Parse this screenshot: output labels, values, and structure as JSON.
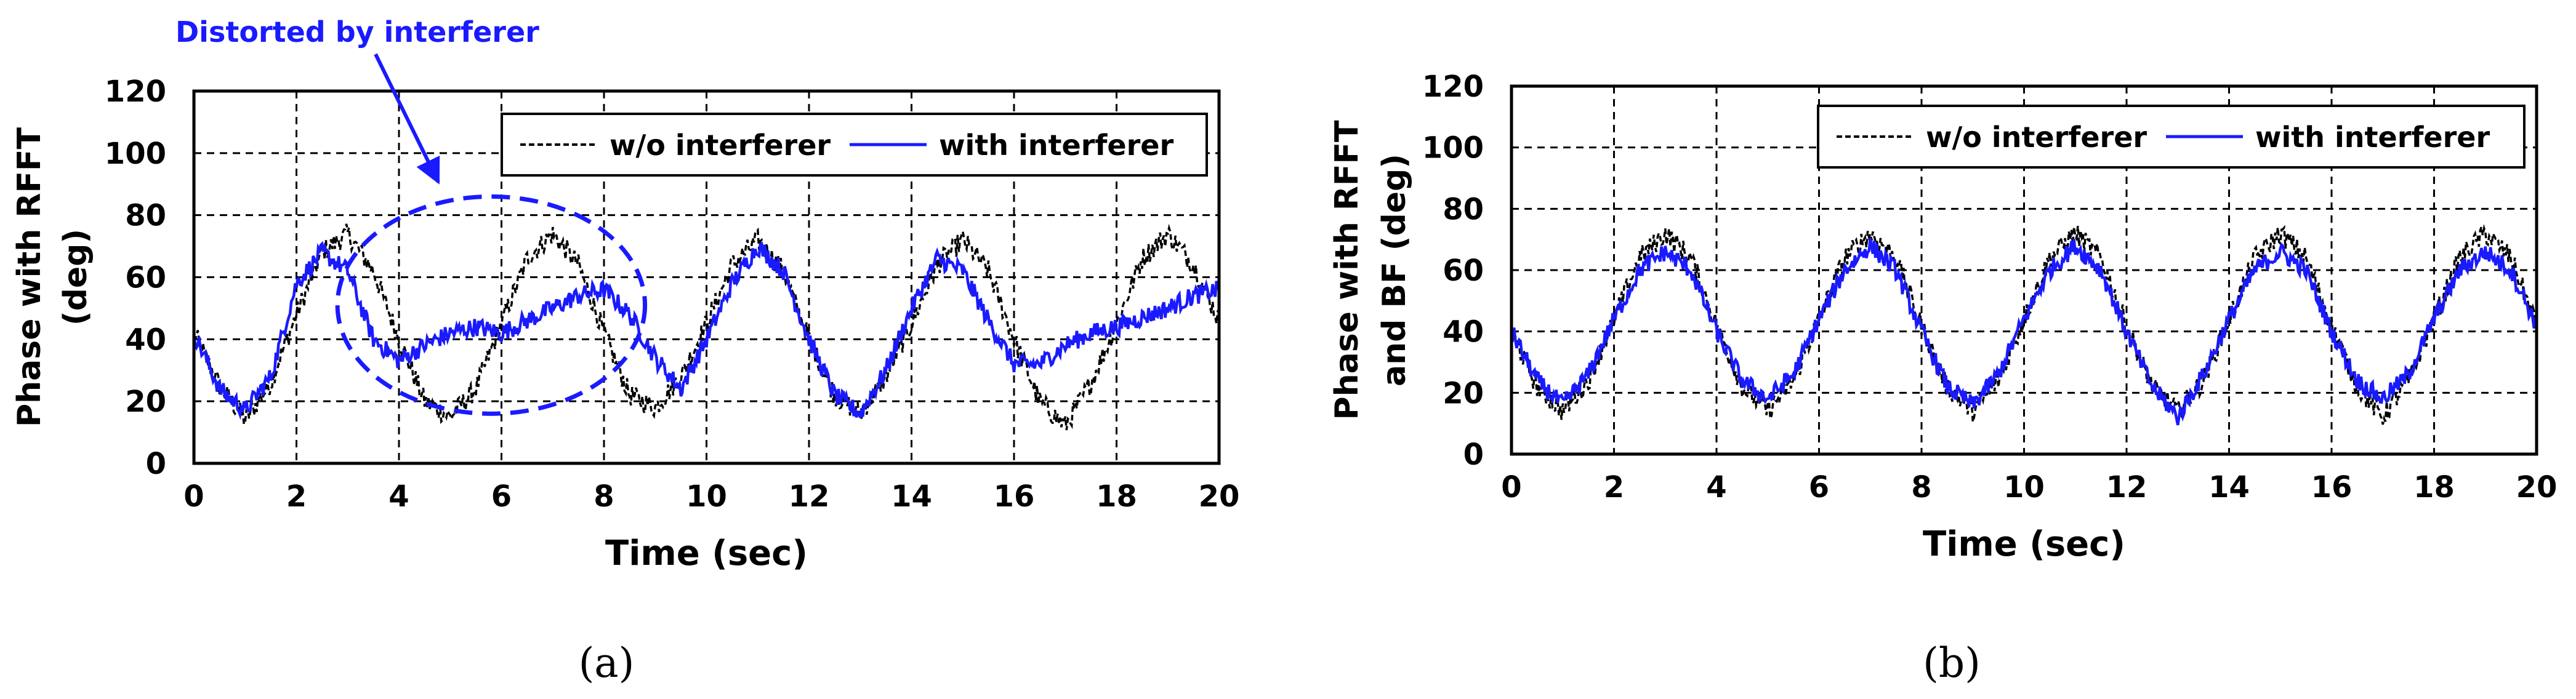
{
  "chart_data": [
    {
      "type": "line",
      "panel_label": "(a)",
      "ylabel": "Phase with RFFT (deg)",
      "ylabel_lines": [
        "Phase with RFFT",
        "(deg)"
      ],
      "xlabel": "Time (sec)",
      "xlim": [
        0,
        20
      ],
      "ylim": [
        0,
        120
      ],
      "xticks": [
        0,
        2,
        4,
        6,
        8,
        10,
        12,
        14,
        16,
        18,
        20
      ],
      "yticks": [
        0,
        20,
        40,
        60,
        80,
        100,
        120
      ],
      "grid": true,
      "legend_position": "top-right",
      "annotation": "Distorted by interferer",
      "ellipse_center": [
        5.8,
        51
      ],
      "ellipse_radii": [
        3.0,
        35
      ],
      "series": [
        {
          "name": "w/o interferer",
          "style": "dashed",
          "color": "#000000",
          "period": 4.0,
          "x": [
            0,
            0.5,
            1.0,
            1.5,
            2.0,
            2.5,
            3.0,
            3.5,
            4.0,
            4.5,
            5.0,
            5.5,
            6.0,
            6.5,
            7.0,
            7.5,
            8.0,
            8.5,
            9.0,
            9.5,
            10.0,
            10.5,
            11.0,
            11.5,
            12.0,
            12.5,
            13.0,
            13.5,
            14.0,
            14.5,
            15.0,
            15.5,
            16.0,
            16.5,
            17.0,
            17.5,
            18.0,
            18.5,
            19.0,
            19.5,
            20.0
          ],
          "y": [
            42,
            25,
            14,
            26,
            48,
            68,
            74,
            62,
            40,
            20,
            15,
            24,
            45,
            66,
            74,
            64,
            42,
            22,
            18,
            28,
            45,
            64,
            72,
            62,
            40,
            22,
            16,
            28,
            45,
            64,
            72,
            62,
            40,
            20,
            12,
            26,
            45,
            66,
            74,
            64,
            46
          ]
        },
        {
          "name": "with interferer",
          "style": "solid",
          "color": "#1a1aff",
          "x": [
            0,
            0.5,
            1.0,
            1.5,
            2.0,
            2.5,
            3.0,
            3.5,
            4.0,
            4.5,
            5.0,
            5.5,
            6.0,
            6.5,
            7.0,
            7.5,
            8.0,
            8.5,
            9.0,
            9.5,
            10.0,
            10.5,
            11.0,
            11.5,
            12.0,
            12.5,
            13.0,
            13.5,
            14.0,
            14.5,
            15.0,
            15.5,
            16.0,
            16.5,
            17.0,
            17.5,
            18.0,
            18.5,
            19.0,
            19.5,
            20.0
          ],
          "y": [
            42,
            24,
            17,
            28,
            58,
            68,
            62,
            40,
            33,
            38,
            42,
            44,
            42,
            46,
            50,
            54,
            56,
            48,
            34,
            24,
            40,
            58,
            70,
            62,
            40,
            22,
            16,
            30,
            50,
            66,
            62,
            46,
            32,
            32,
            38,
            42,
            44,
            47,
            50,
            54,
            56
          ]
        }
      ]
    },
    {
      "type": "line",
      "panel_label": "(b)",
      "ylabel": "Phase with RFFT and BF (deg)",
      "ylabel_lines": [
        "Phase with RFFT",
        "and BF (deg)"
      ],
      "xlabel": "Time (sec)",
      "xlim": [
        0,
        20
      ],
      "ylim": [
        0,
        120
      ],
      "xticks": [
        0,
        2,
        4,
        6,
        8,
        10,
        12,
        14,
        16,
        18,
        20
      ],
      "yticks": [
        0,
        20,
        40,
        60,
        80,
        100,
        120
      ],
      "grid": true,
      "legend_position": "top-right",
      "series": [
        {
          "name": "w/o interferer",
          "style": "dashed",
          "color": "#000000",
          "x": [
            0,
            0.5,
            1.0,
            1.5,
            2.0,
            2.5,
            3.0,
            3.5,
            4.0,
            4.5,
            5.0,
            5.5,
            6.0,
            6.5,
            7.0,
            7.5,
            8.0,
            8.5,
            9.0,
            9.5,
            10.0,
            10.5,
            11.0,
            11.5,
            12.0,
            12.5,
            13.0,
            13.5,
            14.0,
            14.5,
            15.0,
            15.5,
            16.0,
            16.5,
            17.0,
            17.5,
            18.0,
            18.5,
            19.0,
            19.5,
            20.0
          ],
          "y": [
            40,
            22,
            14,
            24,
            44,
            64,
            72,
            64,
            42,
            22,
            14,
            24,
            44,
            64,
            72,
            64,
            42,
            22,
            14,
            24,
            44,
            64,
            72,
            64,
            42,
            22,
            14,
            24,
            44,
            64,
            72,
            64,
            42,
            22,
            12,
            24,
            44,
            64,
            72,
            64,
            42
          ]
        },
        {
          "name": "with interferer",
          "style": "solid",
          "color": "#1a1aff",
          "x": [
            0,
            0.5,
            1.0,
            1.5,
            2.0,
            2.5,
            3.0,
            3.5,
            4.0,
            4.5,
            5.0,
            5.5,
            6.0,
            6.5,
            7.0,
            7.5,
            8.0,
            8.5,
            9.0,
            9.5,
            10.0,
            10.5,
            11.0,
            11.5,
            12.0,
            12.5,
            13.0,
            13.5,
            14.0,
            14.5,
            15.0,
            15.5,
            16.0,
            16.5,
            17.0,
            17.5,
            18.0,
            18.5,
            19.0,
            19.5,
            20.0
          ],
          "y": [
            40,
            24,
            16,
            26,
            44,
            60,
            66,
            60,
            40,
            24,
            18,
            26,
            44,
            60,
            68,
            60,
            40,
            22,
            16,
            26,
            44,
            60,
            68,
            60,
            40,
            22,
            12,
            26,
            44,
            60,
            66,
            60,
            40,
            24,
            18,
            26,
            44,
            60,
            66,
            60,
            42
          ]
        }
      ]
    }
  ]
}
